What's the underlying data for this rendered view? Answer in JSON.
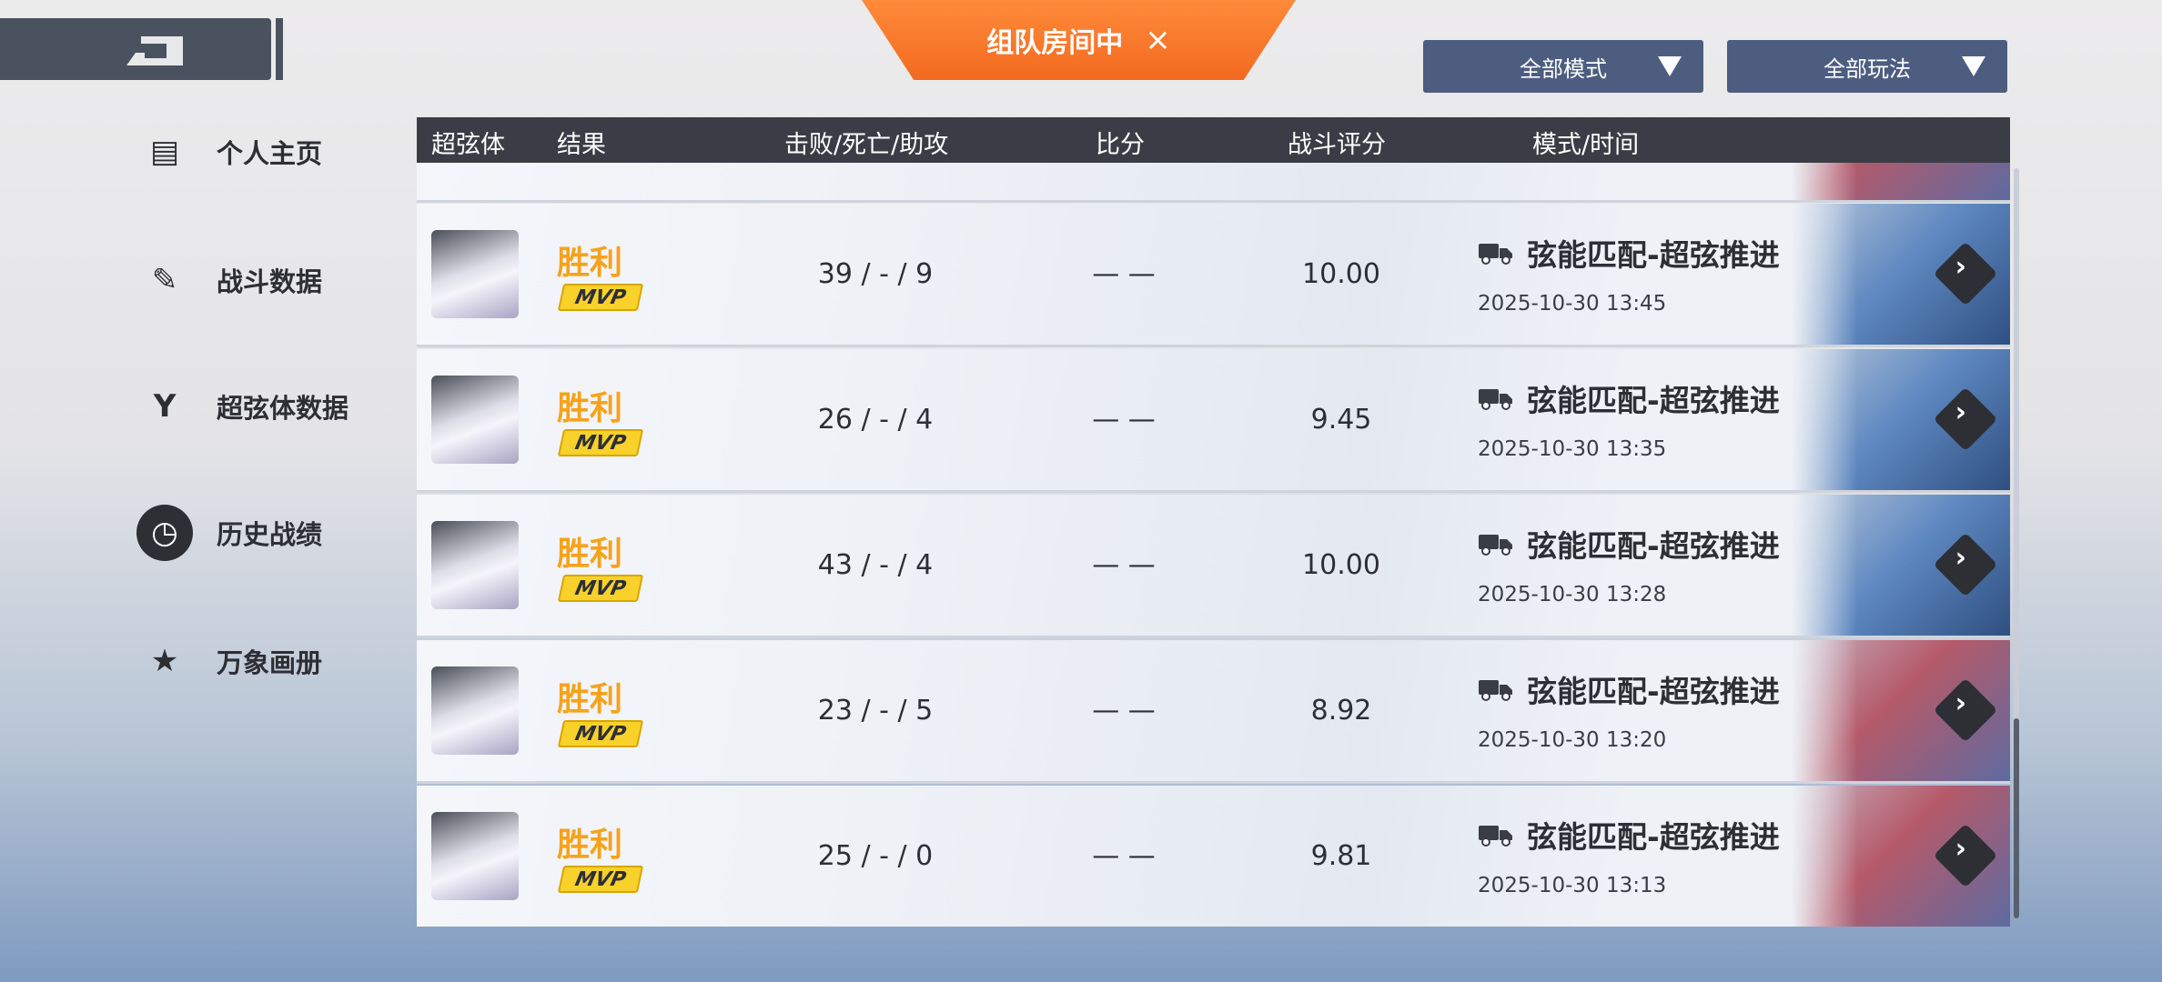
{
  "room": {
    "label": "组队房间中",
    "close": "×"
  },
  "filters": [
    {
      "label": "全部模式"
    },
    {
      "label": "全部玩法"
    }
  ],
  "sidebar": {
    "items": [
      {
        "label": "个人主页",
        "icon": "id-card-icon",
        "glyph": "▤",
        "active": false
      },
      {
        "label": "战斗数据",
        "icon": "notepad-pen-icon",
        "glyph": "✎",
        "active": false
      },
      {
        "label": "超弦体数据",
        "icon": "emblem-icon",
        "glyph": "Y",
        "active": false
      },
      {
        "label": "历史战绩",
        "icon": "history-clock-icon",
        "glyph": "◷",
        "active": true
      },
      {
        "label": "万象画册",
        "icon": "bookmark-star-icon",
        "glyph": "★",
        "active": false
      }
    ]
  },
  "table": {
    "headers": [
      "超弦体",
      "结果",
      "击败/死亡/助攻",
      "比分",
      "战斗评分",
      "模式/时间"
    ],
    "rows": [
      {
        "result": "胜利",
        "badge": "MVP",
        "kda": "39 / - / 9",
        "score": "— —",
        "rating": "10.00",
        "mode": "弦能匹配-超弦推进",
        "time": "2025-10-30 13:45",
        "map": "blue"
      },
      {
        "result": "胜利",
        "badge": "MVP",
        "kda": "26 / - / 4",
        "score": "— —",
        "rating": "9.45",
        "mode": "弦能匹配-超弦推进",
        "time": "2025-10-30 13:35",
        "map": "blue"
      },
      {
        "result": "胜利",
        "badge": "MVP",
        "kda": "43 / - / 4",
        "score": "— —",
        "rating": "10.00",
        "mode": "弦能匹配-超弦推进",
        "time": "2025-10-30 13:28",
        "map": "blue"
      },
      {
        "result": "胜利",
        "badge": "MVP",
        "kda": "23 / - / 5",
        "score": "— —",
        "rating": "8.92",
        "mode": "弦能匹配-超弦推进",
        "time": "2025-10-30 13:20",
        "map": "pink"
      },
      {
        "result": "胜利",
        "badge": "MVP",
        "kda": "25 / - / 0",
        "score": "— —",
        "rating": "9.81",
        "mode": "弦能匹配-超弦推进",
        "time": "2025-10-30 13:13",
        "map": "pink"
      }
    ]
  },
  "colors": {
    "accent": "#f26a1f",
    "result": "#f7a21b",
    "header": "#3a3d45",
    "filter": "#4d5d80"
  }
}
